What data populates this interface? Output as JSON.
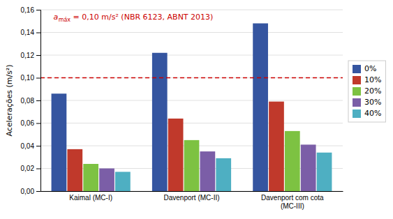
{
  "chart_data": {
    "type": "bar",
    "categories": [
      "Kaimal (MC-I)",
      "Davenport (MC-II)",
      "Davenport com cota\n(MC-III)"
    ],
    "series": [
      {
        "name": "0%",
        "color": "#3555A0",
        "values": [
          0.086,
          0.122,
          0.148
        ]
      },
      {
        "name": "10%",
        "color": "#C0392B",
        "values": [
          0.037,
          0.064,
          0.079
        ]
      },
      {
        "name": "20%",
        "color": "#7DC242",
        "values": [
          0.024,
          0.045,
          0.053
        ]
      },
      {
        "name": "30%",
        "color": "#7B5EA7",
        "values": [
          0.02,
          0.035,
          0.041
        ]
      },
      {
        "name": "40%",
        "color": "#4EAFC2",
        "values": [
          0.017,
          0.029,
          0.034
        ]
      }
    ],
    "ylabel": "Acelerações (m/s²)",
    "ylim": [
      0,
      0.16
    ],
    "yticks": [
      {
        "value": 0,
        "label": "0,00"
      },
      {
        "value": 0.02,
        "label": "0,02"
      },
      {
        "value": 0.04,
        "label": "0,04"
      },
      {
        "value": 0.06,
        "label": "0,06"
      },
      {
        "value": 0.08,
        "label": "0,08"
      },
      {
        "value": 0.1,
        "label": "0,10"
      },
      {
        "value": 0.12,
        "label": "0,12"
      },
      {
        "value": 0.14,
        "label": "0,14"
      },
      {
        "value": 0.16,
        "label": "0,16"
      }
    ],
    "grid": true,
    "legend": "right",
    "reference_line": {
      "value": 0.1,
      "color": "#CC0000",
      "line_style": "dashed"
    },
    "annotation": [
      "a",
      "máx",
      " = 0,10 m/s² (NBR 6123, ABNT 2013)"
    ]
  }
}
